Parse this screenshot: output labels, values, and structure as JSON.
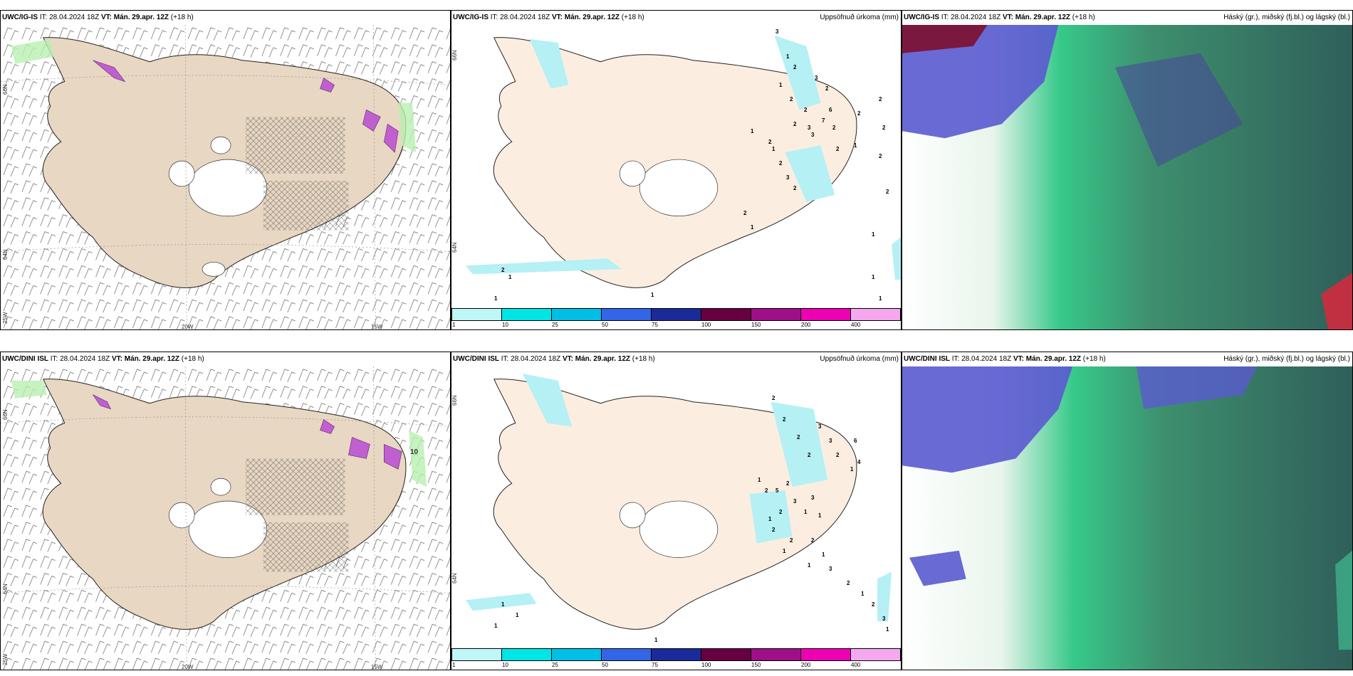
{
  "colorbar": {
    "labels": [
      "1",
      "10",
      "25",
      "50",
      "75",
      "100",
      "150",
      "200",
      "400"
    ],
    "colors": [
      "#bff7f7",
      "#00e6e6",
      "#00bfe6",
      "#3366e6",
      "#1a2b99",
      "#660040",
      "#9e0f88",
      "#ee00b4",
      "#f5a8f0"
    ]
  },
  "colors": {
    "land": "#e8d7c2",
    "land_light": "#fbeee0",
    "ice": "#ffffff",
    "precip": "#b5f0f5"
  },
  "rows": [
    {
      "wind": {
        "model": "UWC/IG-IS",
        "it_label": "IT:",
        "it_value": "28.04.2024 18Z",
        "vt_label": "VT: Mán. 29.apr. 12Z",
        "lead": "(+18 h)",
        "lat1": "66N",
        "lat2": "64N",
        "lon0": "25W",
        "lon1": "20W",
        "lon2": "15W"
      },
      "precip": {
        "model": "UWC/IG-IS",
        "it_label": "IT:",
        "it_value": "28.04.2024 18Z",
        "vt_label": "VT: Mán. 29.apr. 12Z",
        "lead": "(+18 h)",
        "title": "Uppsöfnuð úrkoma (mm)",
        "lat1": "66N",
        "lat2": "64N",
        "values": [
          "3",
          "1",
          "1",
          "2",
          "2",
          "3",
          "2",
          "6",
          "2",
          "2",
          "7",
          "3",
          "1",
          "2",
          "1",
          "2",
          "3",
          "2",
          "2",
          "1",
          "3",
          "2",
          "2",
          "1",
          "2",
          "2",
          "2",
          "2",
          "2",
          "1",
          "1",
          "1",
          "1",
          "2",
          "1",
          "1"
        ]
      },
      "cloud": {
        "model": "UWC/IG-IS",
        "it_label": "IT:",
        "it_value": "28.04.2024 18Z",
        "vt_label": "VT: Mán. 29.apr. 12Z",
        "lead": "(+18 h)",
        "title": "Háský (gr.), miðský (fj.bl.) og lágský (bl.)"
      }
    },
    {
      "wind": {
        "model": "UWC/DINI ISL",
        "it_label": "IT:",
        "it_value": "28.04.2024 18Z",
        "vt_label": "VT: Mán. 29.apr. 12Z",
        "lead": "(+18 h)",
        "lat1": "66N",
        "lat2": "64N",
        "lon0": "25W",
        "lon1": "20W",
        "lon2": "15W",
        "gust": "10"
      },
      "precip": {
        "model": "UWC/DINI ISL",
        "it_label": "IT:",
        "it_value": "28.04.2024 18Z",
        "vt_label": "VT: Mán. 29.apr. 12Z",
        "lead": "(+18 h)",
        "title": "Uppsöfnuð úrkoma (mm)",
        "lat1": "66N",
        "lat2": "64N",
        "values": [
          "2",
          "2",
          "2",
          "2",
          "3",
          "3",
          "2",
          "1",
          "6",
          "4",
          "2",
          "5",
          "3",
          "1",
          "3",
          "1",
          "2",
          "1",
          "2",
          "1",
          "2",
          "2",
          "1",
          "2",
          "1",
          "1",
          "3",
          "2",
          "1",
          "2",
          "3",
          "1",
          "1",
          "1",
          "1",
          "1"
        ]
      },
      "cloud": {
        "model": "UWC/DINI ISL",
        "it_label": "IT:",
        "it_value": "28.04.2024 18Z",
        "vt_label": "VT: Mán. 29.apr. 12Z",
        "lead": "(+18 h)",
        "title": "Háský (gr.), miðský (fj.bl.) og lágský (bl.)"
      }
    }
  ]
}
